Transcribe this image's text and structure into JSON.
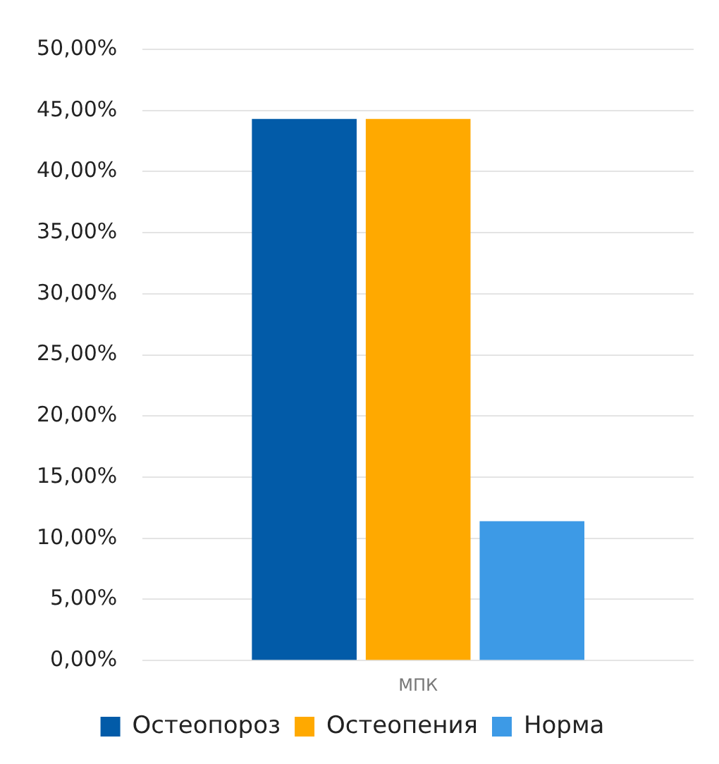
{
  "chart_data": {
    "type": "bar",
    "categories": [
      "МПК"
    ],
    "series": [
      {
        "name": "Остеопороз",
        "color": "#025ba8",
        "values": [
          44.3
        ]
      },
      {
        "name": "Остеопения",
        "color": "#ffa900",
        "values": [
          44.3
        ]
      },
      {
        "name": "Норма",
        "color": "#3d9ae6",
        "values": [
          11.4
        ]
      }
    ],
    "ylim": [
      0,
      50
    ],
    "yticks": [
      {
        "value": 0,
        "label": "0,00%"
      },
      {
        "value": 5,
        "label": "5,00%"
      },
      {
        "value": 10,
        "label": "10,00%"
      },
      {
        "value": 15,
        "label": "15,00%"
      },
      {
        "value": 20,
        "label": "20,00%"
      },
      {
        "value": 25,
        "label": "25,00%"
      },
      {
        "value": 30,
        "label": "30,00%"
      },
      {
        "value": 35,
        "label": "35,00%"
      },
      {
        "value": 40,
        "label": "40,00%"
      },
      {
        "value": 45,
        "label": "45,00%"
      },
      {
        "value": 50,
        "label": "50,00%"
      }
    ],
    "grid": "y",
    "legend": "bottom"
  }
}
